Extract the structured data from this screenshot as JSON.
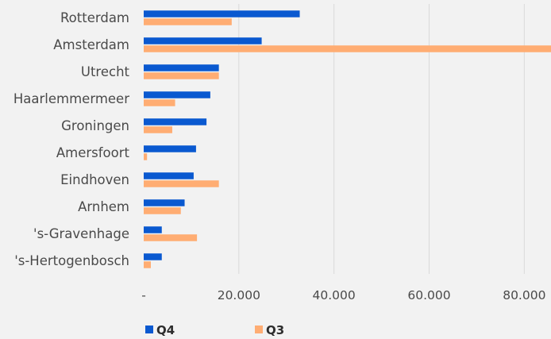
{
  "chart_data": {
    "type": "bar",
    "orientation": "horizontal",
    "title": "",
    "xlabel": "",
    "ylabel": "",
    "categories": [
      "Rotterdam",
      "Amsterdam",
      "Utrecht",
      "Haarlemmermeer",
      "Groningen",
      "Amersfoort",
      "Eindhoven",
      "Arnhem",
      "'s-Gravenhage",
      "'s-Hertogenbosch"
    ],
    "series": [
      {
        "name": "Q4",
        "color": "#0a59d0",
        "values": [
          32800,
          24800,
          15800,
          14000,
          13200,
          11000,
          10500,
          8600,
          3800,
          3800
        ]
      },
      {
        "name": "Q3",
        "color": "#ffad73",
        "values": [
          18500,
          87000,
          15800,
          6600,
          6000,
          700,
          15800,
          7800,
          11200,
          1500
        ]
      }
    ],
    "xlim": [
      0,
      86000
    ],
    "x_ticks": [
      0,
      20000,
      40000,
      60000,
      80000
    ],
    "x_tick_labels": [
      "-",
      "20.000",
      "40.000",
      "60.000",
      "80.000"
    ],
    "grid": "vertical",
    "legend_position": "bottom-left"
  }
}
